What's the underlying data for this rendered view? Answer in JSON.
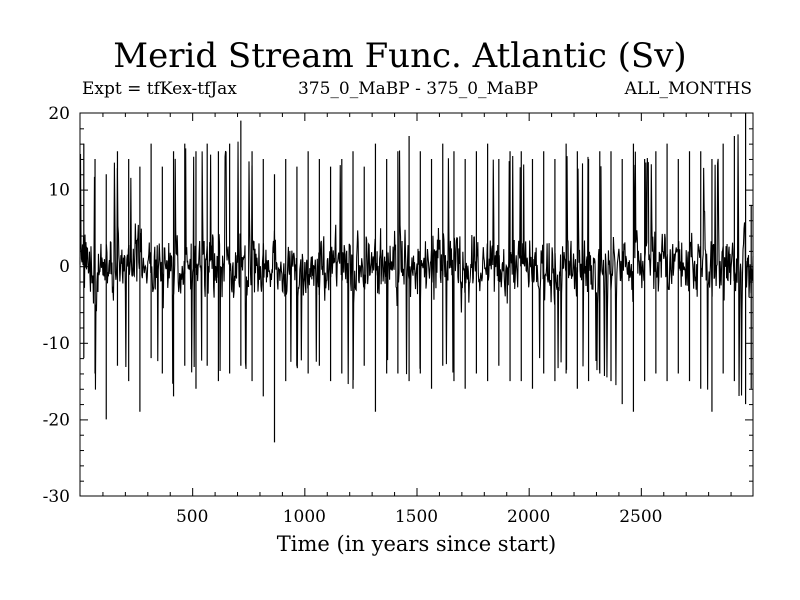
{
  "header": {
    "title": "Merid Stream Func. Atlantic (Sv)",
    "left_note": "Expt = tfKex-tfJax",
    "center_note": "375_0_MaBP - 375_0_MaBP",
    "right_note": "ALL_MONTHS"
  },
  "chart_data": {
    "type": "line",
    "title": "Merid Stream Func. Atlantic (Sv)",
    "xlabel": "Time (in years since start)",
    "ylabel": "",
    "xlim": [
      0,
      3000
    ],
    "ylim": [
      -30,
      20
    ],
    "x_ticks": [
      500,
      1000,
      1500,
      2000,
      2500
    ],
    "y_ticks": [
      20,
      10,
      0,
      -10,
      -20,
      -30
    ],
    "x_tick_labels": [
      "500",
      "1000",
      "1500",
      "2000",
      "2500"
    ],
    "y_tick_labels": [
      "20",
      "10",
      "0",
      "-10",
      "-20",
      "-30"
    ],
    "grid": false,
    "series": [
      {
        "color": "#000000",
        "x": [
          0,
          50,
          100,
          150,
          200,
          250,
          300,
          350,
          400,
          450,
          500,
          550,
          600,
          650,
          700,
          750,
          800,
          850,
          900,
          950,
          1000,
          1050,
          1100,
          1150,
          1200,
          1250,
          1300,
          1350,
          1400,
          1450,
          1500,
          1550,
          1600,
          1650,
          1700,
          1750,
          1800,
          1850,
          1900,
          1950,
          2000,
          2050,
          2100,
          2150,
          2200,
          2250,
          2300,
          2350,
          2400,
          2450,
          2500,
          2550,
          2600,
          2650,
          2700,
          2750,
          2800,
          2850,
          2900,
          2950,
          3000
        ],
        "max": [
          16,
          14,
          12,
          15,
          14,
          13,
          16,
          13,
          15,
          16,
          15,
          16,
          15,
          16,
          19,
          15,
          14,
          12,
          14,
          13,
          15,
          14,
          13,
          14,
          15,
          13,
          16,
          14,
          15,
          17,
          15,
          14,
          16,
          15,
          14,
          15,
          16,
          14,
          15,
          15,
          14,
          15,
          14,
          16,
          15,
          14,
          15,
          15,
          14,
          16,
          14,
          15,
          16,
          14,
          15,
          15,
          14,
          16,
          17,
          20,
          8
        ],
        "min": [
          -12,
          -14,
          -20,
          -13,
          -15,
          -19,
          -12,
          -14,
          -17,
          -13,
          -16,
          -13,
          -15,
          -14,
          -13,
          -15,
          -17,
          -23,
          -15,
          -13,
          -14,
          -13,
          -15,
          -14,
          -16,
          -13,
          -19,
          -14,
          -14,
          -15,
          -14,
          -16,
          -13,
          -15,
          -16,
          -14,
          -15,
          -13,
          -15,
          -15,
          -16,
          -14,
          -15,
          -14,
          -16,
          -15,
          -14,
          -15,
          -18,
          -19,
          -15,
          -14,
          -15,
          -14,
          -15,
          -16,
          -19,
          -14,
          -15,
          -18,
          -16
        ]
      }
    ]
  }
}
